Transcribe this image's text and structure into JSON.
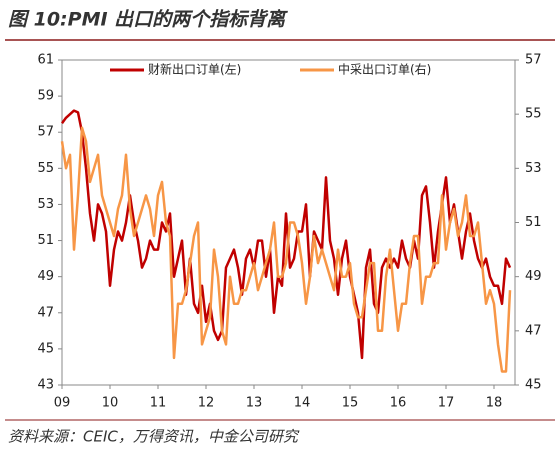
{
  "chart_data": {
    "type": "line",
    "title": "图 10:PMI 出口的两个指标背离",
    "source": "资料来源：CEIC，万得资讯，中金公司研究",
    "categories": [
      "09",
      null,
      null,
      null,
      null,
      null,
      null,
      null,
      null,
      null,
      null,
      null,
      "10",
      null,
      null,
      null,
      null,
      null,
      null,
      null,
      null,
      null,
      null,
      null,
      "11",
      null,
      null,
      null,
      null,
      null,
      null,
      null,
      null,
      null,
      null,
      null,
      "12",
      null,
      null,
      null,
      null,
      null,
      null,
      null,
      null,
      null,
      null,
      null,
      "13",
      null,
      null,
      null,
      null,
      null,
      null,
      null,
      null,
      null,
      null,
      null,
      "14",
      null,
      null,
      null,
      null,
      null,
      null,
      null,
      null,
      null,
      null,
      null,
      "15",
      null,
      null,
      null,
      null,
      null,
      null,
      null,
      null,
      null,
      null,
      null,
      "16",
      null,
      null,
      null,
      null,
      null,
      null,
      null,
      null,
      null,
      null,
      null,
      "17",
      null,
      null,
      null,
      null,
      null,
      null,
      null,
      null,
      null,
      null,
      null,
      "18",
      null,
      null,
      null,
      null
    ],
    "series": [
      {
        "name": "财新出口订单(左)",
        "color": "#c00000",
        "axis": "y",
        "values": [
          57.5,
          57.8,
          58.0,
          58.2,
          58.1,
          57.0,
          55.0,
          52.5,
          51.0,
          53.0,
          52.5,
          51.5,
          48.5,
          50.5,
          51.5,
          51.0,
          52.0,
          53.5,
          52.0,
          51.0,
          49.5,
          50.0,
          51.0,
          50.5,
          50.5,
          52.0,
          51.5,
          52.5,
          49.0,
          50.0,
          51.0,
          48.0,
          50.0,
          47.5,
          47.0,
          48.5,
          46.5,
          47.5,
          46.0,
          45.5,
          46.0,
          49.5,
          50.0,
          50.5,
          49.5,
          48.0,
          50.0,
          50.5,
          49.5,
          51.0,
          51.0,
          49.0,
          50.5,
          47.0,
          49.0,
          48.5,
          52.5,
          49.5,
          50.0,
          51.5,
          51.5,
          53.0,
          49.0,
          51.5,
          51.0,
          50.5,
          54.5,
          51.0,
          50.0,
          48.0,
          50.0,
          51.0,
          49.0,
          48.0,
          47.0,
          44.5,
          49.5,
          50.5,
          47.5,
          47.0,
          49.5,
          50.0,
          49.5,
          50.0,
          49.5,
          51.0,
          50.0,
          49.5,
          51.0,
          50.0,
          53.5,
          54.0,
          52.0,
          49.5,
          51.5,
          53.0,
          54.5,
          52.0,
          53.0,
          51.5,
          50.0,
          51.5,
          52.5,
          51.0,
          50.0,
          49.5,
          50.0,
          49.0,
          48.5,
          48.5,
          47.5,
          50.0,
          49.5
        ]
      },
      {
        "name": "中采出口订单(右)",
        "color": "#f79646",
        "axis": "y2",
        "values": [
          54,
          53,
          53.5,
          50,
          52,
          54.5,
          54,
          52.5,
          53,
          53.5,
          52,
          51.5,
          51,
          50.5,
          51.5,
          52,
          53.5,
          51.5,
          50.5,
          51,
          51.5,
          52,
          51.5,
          50.5,
          52,
          52.5,
          51,
          50.5,
          46,
          48,
          48,
          48.5,
          49.5,
          50.5,
          51,
          46.5,
          47,
          47.5,
          50,
          49,
          47,
          46.5,
          49,
          48,
          48,
          48.5,
          48.5,
          49,
          49.5,
          48.5,
          49,
          49.5,
          50,
          51,
          49,
          49,
          49.5,
          51,
          51,
          50.5,
          49.5,
          48,
          49,
          50.5,
          49.5,
          50,
          49.5,
          49,
          48.5,
          50,
          49,
          49,
          49.5,
          48,
          47.5,
          47.5,
          48.5,
          49.5,
          49.5,
          47,
          47,
          49,
          50,
          48.5,
          47,
          48,
          48,
          49.5,
          50.5,
          50.5,
          48,
          49,
          49,
          49.5,
          49.5,
          52,
          50,
          51,
          51.5,
          50.5,
          51,
          52,
          50.5,
          50.5,
          51,
          49.5,
          48,
          48.5,
          48,
          46.5,
          45.5,
          45.5,
          48.5
        ]
      }
    ],
    "ylim": [
      43,
      61
    ],
    "yticks": [
      43,
      45,
      47,
      49,
      51,
      53,
      55,
      57,
      59,
      61
    ],
    "y2lim": [
      45,
      57
    ],
    "y2ticks": [
      45,
      47,
      49,
      51,
      53,
      55,
      57
    ],
    "grid": false
  }
}
